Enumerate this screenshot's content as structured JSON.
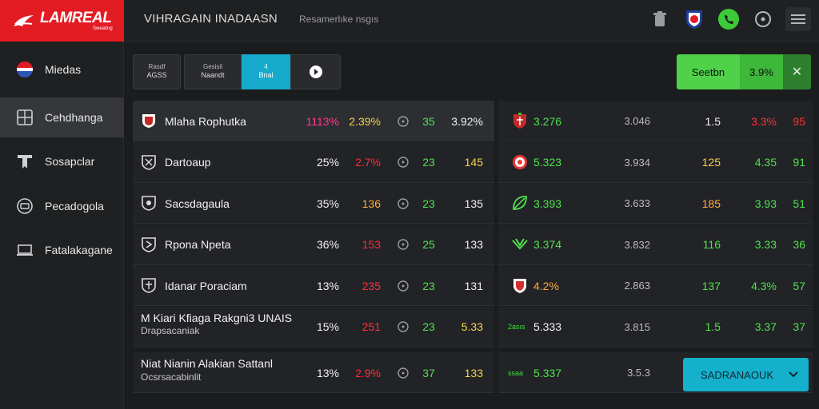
{
  "header": {
    "brand": "LAMREAL",
    "brand_sub": "Sweating",
    "title": "VIHRAGAIN INADAASN",
    "subtitle": "Resamerlıke nsgıs"
  },
  "top_icons": [
    "trash-icon",
    "team-crest-icon",
    "phone-call-icon",
    "settings-circle-icon",
    "menu-icon"
  ],
  "sidebar": {
    "items": [
      {
        "label": "Miedas",
        "icon": "flag-icon",
        "active": false
      },
      {
        "label": "Cehdhanga",
        "icon": "bracket-grid-icon",
        "active": true
      },
      {
        "label": "Sosapclar",
        "icon": "shield-icon",
        "active": false
      },
      {
        "label": "Pecadogola",
        "icon": "ball-icon",
        "active": false
      },
      {
        "label": "Fatalakagane",
        "icon": "laptop-icon",
        "active": false
      }
    ]
  },
  "filters": {
    "b1_top": "Rasdf",
    "b1_bottom": "AGSS",
    "b2_top": "Gesisil",
    "b2_bottom": "Naandt",
    "b3_top": "4",
    "b3_bottom": "Bnal",
    "b4_icon": "play-icon"
  },
  "search": {
    "label": "Seetbn",
    "value": "3.9%",
    "close": "✕"
  },
  "left_rows": [
    {
      "name": "Mlaha Rophutka",
      "sub": "",
      "c1": "1113%",
      "c2": "2.39%",
      "c4": "35",
      "c5": "3.92%",
      "c1_color": "magenta",
      "c2_color": "yellow",
      "c5_color": "white",
      "highlight": true
    },
    {
      "name": "Dartoaup",
      "sub": "",
      "c1": "25%",
      "c2": "2.7%",
      "c4": "23",
      "c5": "145",
      "c1_color": "white",
      "c2_color": "red",
      "c5_color": "yellow",
      "highlight": false
    },
    {
      "name": "Sacsdagaula",
      "sub": "",
      "c1": "35%",
      "c2": "136",
      "c4": "23",
      "c5": "135",
      "c1_color": "white",
      "c2_color": "orange",
      "c5_color": "white",
      "highlight": false
    },
    {
      "name": "Rpona Npeta",
      "sub": "",
      "c1": "36%",
      "c2": "153",
      "c4": "25",
      "c5": "133",
      "c1_color": "white",
      "c2_color": "red",
      "c5_color": "white",
      "highlight": false
    },
    {
      "name": "Idanar Poraciam",
      "sub": "",
      "c1": "13%",
      "c2": "235",
      "c4": "23",
      "c5": "131",
      "c1_color": "white",
      "c2_color": "red",
      "c5_color": "white",
      "highlight": false
    },
    {
      "name": "M Kiari Kfiaga Rakgni3 UNAIS",
      "sub": "Drapsacaniak",
      "c1": "15%",
      "c2": "251",
      "c4": "23",
      "c5": "5.33",
      "c1_color": "white",
      "c2_color": "red",
      "c5_color": "yellow",
      "highlight": false
    },
    {
      "name": "Niat Nianin Alakian Sattanl",
      "sub": "Ocsrsacabinlit",
      "c1": "13%",
      "c2": "2.9%",
      "c4": "37",
      "c5": "133",
      "c1_color": "white",
      "c2_color": "red",
      "c5_color": "yellow",
      "highlight": false
    }
  ],
  "right_rows": [
    {
      "small": "",
      "c1": "3.276",
      "c1_color": "green",
      "c2": "3.046",
      "c3": "1.5",
      "c3_color": "white",
      "c4": "3.3%",
      "c4_color": "red",
      "c5": "95",
      "c5_color": "red",
      "crest": "crest-red"
    },
    {
      "small": "",
      "c1": "5.323",
      "c1_color": "green",
      "c2": "3.934",
      "c3": "125",
      "c3_color": "yellow",
      "c4": "4.35",
      "c4_color": "green",
      "c5": "91",
      "c5_color": "green",
      "crest": "crest-ring"
    },
    {
      "small": "",
      "c1": "3.393",
      "c1_color": "green",
      "c2": "3.633",
      "c3": "185",
      "c3_color": "orange",
      "c4": "3.93",
      "c4_color": "green",
      "c5": "51",
      "c5_color": "green",
      "crest": "crest-leaf"
    },
    {
      "small": "",
      "c1": "3.374",
      "c1_color": "green",
      "c2": "3.832",
      "c3": "116",
      "c3_color": "green",
      "c4": "3.33",
      "c4_color": "green",
      "c5": "36",
      "c5_color": "green",
      "crest": "crest-wing"
    },
    {
      "small": "",
      "c1": "4.2%",
      "c1_color": "orange",
      "c2": "2.863",
      "c3": "137",
      "c3_color": "green",
      "c4": "4.3%",
      "c4_color": "green",
      "c5": "57",
      "c5_color": "green",
      "crest": "crest-shield"
    },
    {
      "small": "2asıs",
      "c1": "5.333",
      "c1_color": "white",
      "c2": "3.815",
      "c3": "1.5",
      "c3_color": "green",
      "c4": "3.37",
      "c4_color": "green",
      "c5": "37",
      "c5_color": "green",
      "crest": ""
    },
    {
      "small": "ssaa",
      "c1": "5.337",
      "c1_color": "green",
      "c2": "3.5.3",
      "c3": "",
      "c3_color": "white",
      "c4": "",
      "c4_color": "green",
      "c5": "",
      "c5_color": "green",
      "crest": ""
    }
  ],
  "bet_button": {
    "label": "SADRANAOUK"
  },
  "colors": {
    "brand": "#e31b23",
    "accent": "#14b0cc",
    "green": "#4fe24f",
    "red": "#ff2f3a"
  }
}
